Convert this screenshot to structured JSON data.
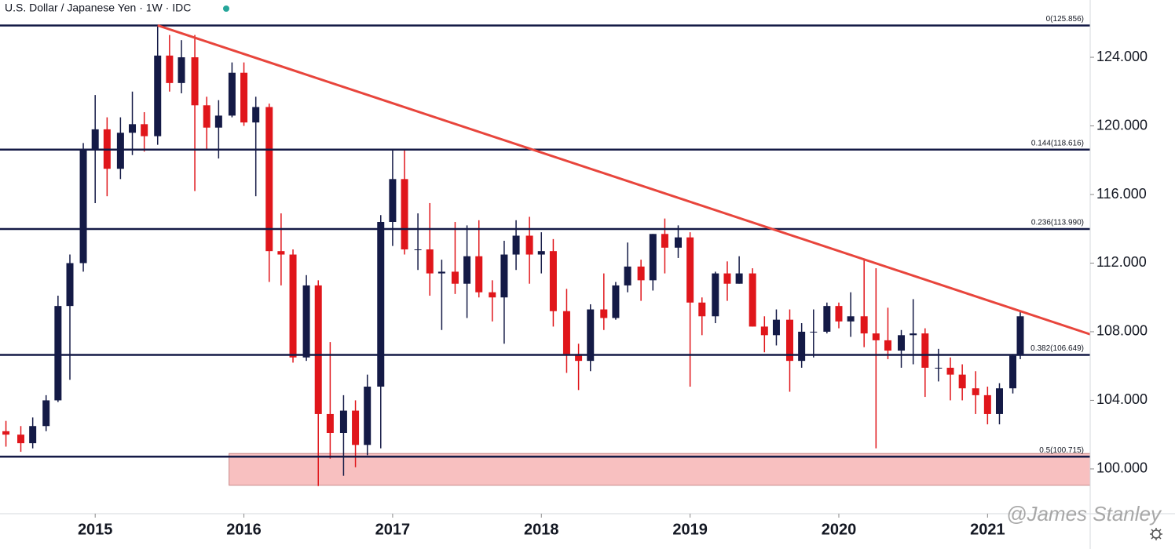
{
  "chart_data": {
    "type": "candlestick",
    "title": "U.S. Dollar / Japanese Yen · 1W · IDC",
    "watermark": "@James Stanley",
    "up_color": "#141a46",
    "down_color": "#e0161b",
    "xlim": [
      2014.36,
      2021.69
    ],
    "xticks": [
      2015,
      2016,
      2017,
      2018,
      2019,
      2020,
      2021
    ],
    "ylim": [
      97.39,
      127.34
    ],
    "yticks": [
      {
        "value": 100,
        "label": "100.000"
      },
      {
        "value": 104,
        "label": "104.000"
      },
      {
        "value": 108,
        "label": "108.000"
      },
      {
        "value": 112,
        "label": "112.000"
      },
      {
        "value": 116,
        "label": "116.000"
      },
      {
        "value": 120,
        "label": "120.000"
      },
      {
        "value": 124,
        "label": "124.000"
      }
    ],
    "levels": [
      {
        "value": 125.856,
        "label": "0(125.856)"
      },
      {
        "value": 118.616,
        "label": "0.144(118.616)"
      },
      {
        "value": 113.99,
        "label": "0.236(113.990)"
      },
      {
        "value": 106.649,
        "label": "0.382(106.649)"
      },
      {
        "value": 100.715,
        "label": "0.5(100.715)"
      }
    ],
    "level_color": "#141a46",
    "trendline": {
      "x": [
        2015.42,
        2021.69
      ],
      "y": [
        125.86,
        107.85
      ],
      "color": "#e8453c"
    },
    "zone": {
      "x": [
        2015.9,
        2021.69
      ],
      "y": [
        99.05,
        100.9
      ],
      "color": "#f8c0c0"
    },
    "x": [
      2014.4,
      2014.5,
      2014.58,
      2014.67,
      2014.75,
      2014.83,
      2014.92,
      2015.0,
      2015.08,
      2015.17,
      2015.25,
      2015.33,
      2015.42,
      2015.5,
      2015.58,
      2015.67,
      2015.75,
      2015.83,
      2015.92,
      2016.0,
      2016.08,
      2016.17,
      2016.25,
      2016.33,
      2016.42,
      2016.5,
      2016.58,
      2016.67,
      2016.75,
      2016.83,
      2016.92,
      2017.0,
      2017.08,
      2017.17,
      2017.25,
      2017.33,
      2017.42,
      2017.5,
      2017.58,
      2017.67,
      2017.75,
      2017.83,
      2017.92,
      2018.0,
      2018.08,
      2018.17,
      2018.25,
      2018.33,
      2018.42,
      2018.5,
      2018.58,
      2018.67,
      2018.75,
      2018.83,
      2018.92,
      2019.0,
      2019.08,
      2019.17,
      2019.25,
      2019.33,
      2019.42,
      2019.5,
      2019.58,
      2019.67,
      2019.75,
      2019.83,
      2019.92,
      2020.0,
      2020.08,
      2020.17,
      2020.25,
      2020.33,
      2020.42,
      2020.5,
      2020.58,
      2020.67,
      2020.75,
      2020.83,
      2020.92,
      2021.0,
      2021.08,
      2021.17,
      2021.22
    ],
    "open": [
      102.2,
      102.0,
      101.5,
      102.5,
      104.0,
      109.5,
      112.0,
      118.6,
      119.8,
      117.5,
      119.6,
      120.1,
      119.4,
      124.1,
      122.5,
      124.0,
      121.2,
      119.9,
      120.6,
      123.1,
      120.2,
      121.1,
      112.7,
      112.5,
      106.5,
      110.7,
      103.2,
      102.1,
      103.4,
      101.4,
      104.8,
      114.4,
      116.9,
      112.8,
      112.8,
      111.4,
      111.5,
      110.8,
      112.4,
      110.3,
      110.0,
      112.5,
      113.6,
      112.5,
      112.7,
      109.2,
      106.7,
      106.3,
      109.3,
      108.8,
      110.7,
      111.8,
      111.0,
      113.7,
      112.9,
      113.5,
      109.7,
      108.9,
      111.4,
      110.8,
      111.4,
      108.3,
      107.8,
      108.7,
      106.3,
      108.0,
      108.0,
      109.5,
      108.6,
      108.9,
      107.9,
      107.5,
      106.9,
      107.8,
      107.9,
      105.9,
      105.9,
      105.5,
      104.7,
      104.3,
      103.2,
      104.7,
      106.6
    ],
    "high": [
      102.8,
      102.5,
      103.0,
      104.3,
      110.1,
      112.5,
      119.0,
      121.8,
      120.5,
      120.5,
      122.0,
      120.8,
      125.86,
      125.3,
      125.0,
      125.3,
      121.7,
      121.5,
      123.7,
      123.7,
      121.7,
      121.3,
      114.9,
      112.8,
      111.3,
      111.0,
      107.4,
      104.3,
      104.0,
      105.5,
      114.8,
      118.6,
      118.6,
      114.9,
      115.5,
      112.2,
      114.4,
      114.2,
      114.5,
      111.0,
      113.3,
      114.5,
      114.7,
      113.8,
      113.4,
      110.5,
      107.3,
      109.6,
      111.4,
      110.9,
      113.2,
      112.2,
      113.7,
      114.6,
      114.2,
      113.8,
      110.0,
      111.5,
      112.1,
      112.4,
      111.7,
      108.9,
      109.3,
      109.3,
      108.5,
      109.3,
      109.7,
      109.7,
      110.3,
      112.2,
      111.7,
      109.4,
      108.1,
      109.9,
      108.2,
      107.0,
      106.5,
      106.1,
      105.7,
      104.8,
      105.0,
      106.7,
      109.2
    ],
    "low": [
      101.3,
      101.0,
      101.2,
      102.2,
      103.9,
      105.2,
      111.5,
      115.5,
      115.9,
      116.9,
      118.3,
      118.5,
      118.9,
      122.0,
      121.9,
      116.2,
      118.6,
      118.1,
      120.5,
      120.0,
      115.9,
      110.9,
      110.7,
      106.2,
      106.3,
      99.0,
      100.6,
      99.6,
      100.1,
      100.8,
      101.2,
      113.0,
      112.5,
      111.6,
      110.1,
      108.1,
      110.2,
      108.8,
      110.0,
      108.6,
      107.3,
      111.6,
      110.8,
      111.4,
      108.3,
      105.6,
      104.6,
      105.7,
      108.1,
      108.7,
      110.3,
      109.8,
      110.4,
      111.4,
      112.3,
      104.8,
      107.8,
      108.5,
      109.8,
      110.8,
      108.3,
      106.8,
      107.2,
      104.5,
      105.9,
      106.5,
      107.9,
      108.2,
      107.7,
      107.1,
      101.2,
      106.4,
      105.9,
      106.1,
      104.2,
      105.1,
      104.0,
      104.0,
      103.2,
      102.6,
      102.6,
      104.4,
      106.4
    ],
    "close": [
      102.0,
      101.5,
      102.5,
      104.0,
      109.5,
      112.0,
      118.6,
      119.8,
      117.5,
      119.6,
      120.1,
      119.4,
      124.1,
      122.5,
      124.0,
      121.2,
      119.9,
      120.6,
      123.1,
      120.2,
      121.1,
      112.7,
      112.5,
      106.5,
      110.7,
      103.2,
      102.1,
      103.4,
      101.4,
      104.8,
      114.4,
      116.9,
      112.8,
      112.8,
      111.4,
      111.5,
      110.8,
      112.4,
      110.3,
      110.0,
      112.5,
      113.6,
      112.5,
      112.7,
      109.2,
      106.7,
      106.3,
      109.3,
      108.8,
      110.7,
      111.8,
      111.0,
      113.7,
      112.9,
      113.5,
      109.7,
      108.9,
      111.4,
      110.8,
      111.4,
      108.3,
      107.8,
      108.7,
      106.3,
      108.0,
      108.0,
      109.5,
      108.6,
      108.9,
      107.9,
      107.5,
      106.9,
      107.8,
      107.9,
      105.9,
      105.9,
      105.5,
      104.7,
      104.3,
      103.2,
      104.7,
      106.6,
      108.9
    ]
  }
}
